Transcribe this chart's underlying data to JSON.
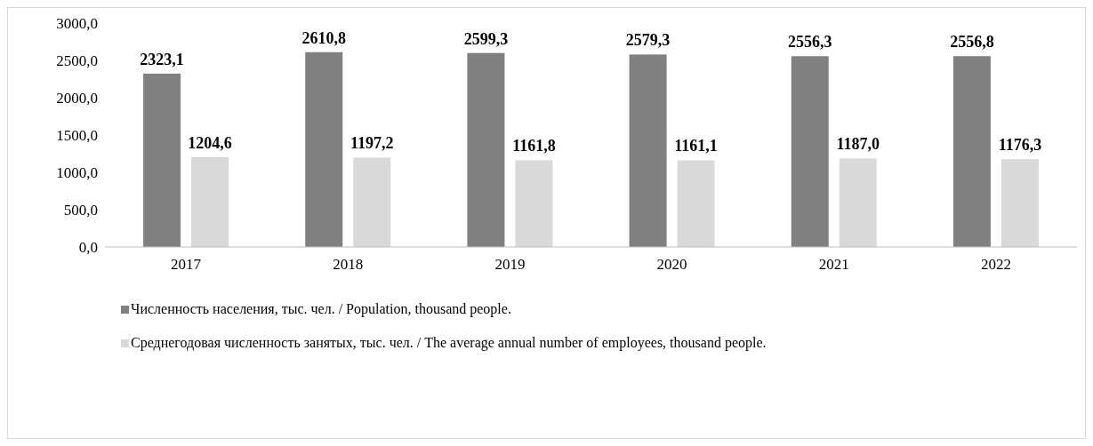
{
  "chart_data": {
    "type": "bar",
    "categories": [
      "2017",
      "2018",
      "2019",
      "2020",
      "2021",
      "2022"
    ],
    "series": [
      {
        "name": "Численность населения, тыс. чел. / Population, thousand people.",
        "color": "#808080",
        "values": [
          2323.1,
          2610.8,
          2599.3,
          2579.3,
          2556.3,
          2556.8
        ],
        "value_labels": [
          "2323,1",
          "2610,8",
          "2599,3",
          "2579,3",
          "2556,3",
          "2556,8"
        ]
      },
      {
        "name": "Среднегодовая численность занятых, тыс. чел. / The average annual number of employees, thousand people.",
        "color": "#d9d9d9",
        "values": [
          1204.6,
          1197.2,
          1161.8,
          1161.1,
          1187.0,
          1176.3
        ],
        "value_labels": [
          "1204,6",
          "1197,2",
          "1161,8",
          "1161,1",
          "1187,0",
          "1176,3"
        ]
      }
    ],
    "ylim": [
      0,
      3000
    ],
    "yticks": [
      {
        "value": 0,
        "label": "0,0"
      },
      {
        "value": 500,
        "label": "500,0"
      },
      {
        "value": 1000,
        "label": "1000,0"
      },
      {
        "value": 1500,
        "label": "1500,0"
      },
      {
        "value": 2000,
        "label": "2000,0"
      },
      {
        "value": 2500,
        "label": "2500,0"
      },
      {
        "value": 3000,
        "label": "3000,0"
      }
    ],
    "legend": "bottom"
  }
}
